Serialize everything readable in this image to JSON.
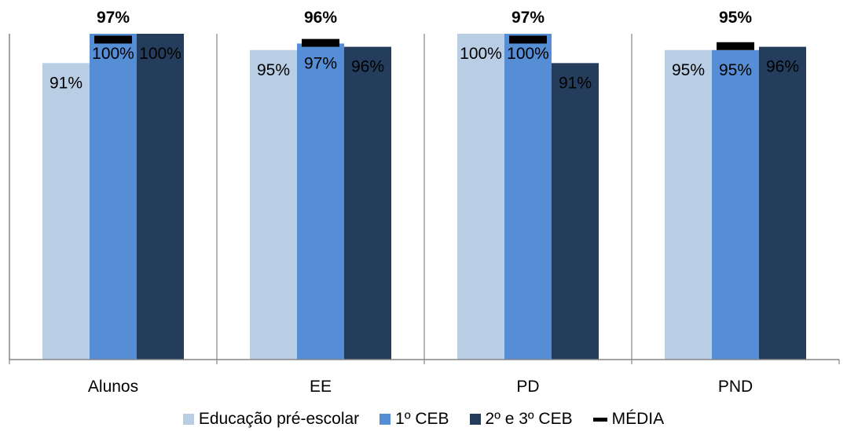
{
  "chart_data": {
    "type": "bar",
    "categories": [
      "Alunos",
      "EE",
      "PD",
      "PND"
    ],
    "series": [
      {
        "name": "Educação pré-escolar",
        "color": "#B9CDE5",
        "values": [
          91,
          95,
          100,
          95
        ],
        "labels": [
          "91%",
          "95%",
          "100%",
          "95%"
        ]
      },
      {
        "name": "1º CEB",
        "color": "#558ED5",
        "values": [
          100,
          97,
          100,
          95
        ],
        "labels": [
          "100%",
          "97%",
          "100%",
          "95%"
        ]
      },
      {
        "name": "2º e 3º CEB",
        "color": "#253D5C",
        "values": [
          100,
          96,
          91,
          96
        ],
        "labels": [
          "100%",
          "96%",
          "91%",
          "96%"
        ]
      }
    ],
    "average": {
      "name": "MÉDIA",
      "color": "#000000",
      "values": [
        97,
        96,
        97,
        95
      ],
      "labels": [
        "97%",
        "96%",
        "97%",
        "95%"
      ]
    },
    "ylim": [
      0,
      100
    ],
    "grid": false,
    "legend_position": "bottom"
  }
}
